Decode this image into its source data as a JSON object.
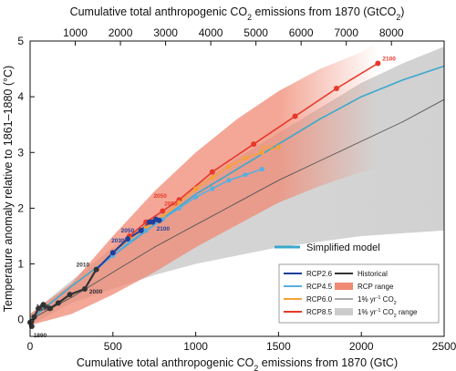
{
  "chart_data": {
    "type": "line",
    "title": "",
    "xlabel": "Cumulative total anthropogenic CO2 emissions from 1870 (GtC)",
    "xlabel_parts": [
      "Cumulative total anthropogenic CO",
      "2",
      " emissions from 1870 (GtC)"
    ],
    "x2label": "Cumulative total anthropogenic CO2 emissions from 1870 (GtCO2)",
    "x2label_parts": [
      "Cumulative total anthropogenic CO",
      "2",
      " emissions from 1870 (GtCO",
      "2",
      ")"
    ],
    "ylabel": "Temperature anomaly relative to 1861–1880 (°C)",
    "xlim": [
      0,
      2500
    ],
    "ylim": [
      -0.3,
      5
    ],
    "x2lim": [
      0,
      9166.7
    ],
    "xticks": [
      0,
      500,
      1000,
      1500,
      2000,
      2500
    ],
    "yticks": [
      0,
      1,
      2,
      3,
      4,
      5
    ],
    "x2ticks": [
      1000,
      2000,
      3000,
      4000,
      5000,
      6000,
      7000,
      8000
    ],
    "grid": false,
    "colors": {
      "rcp26": "#1f3f9c",
      "rcp45": "#5aaee0",
      "rcp60": "#f5a23a",
      "rcp85": "#e8382a",
      "historical": "#333333",
      "rcp_range": "#f08a74",
      "one_pct": "#555555",
      "one_pct_range": "#cccccc",
      "simplified": "#3aa8cc"
    },
    "bands": [
      {
        "name": "1% yr-1 CO2 range",
        "upper": [
          [
            0,
            0.1
          ],
          [
            250,
            0.7
          ],
          [
            500,
            1.3
          ],
          [
            750,
            1.85
          ],
          [
            1000,
            2.4
          ],
          [
            1250,
            2.9
          ],
          [
            1500,
            3.35
          ],
          [
            1750,
            3.8
          ],
          [
            2000,
            4.25
          ],
          [
            2250,
            4.6
          ],
          [
            2500,
            4.9
          ]
        ],
        "lower": [
          [
            0,
            -0.1
          ],
          [
            250,
            0.3
          ],
          [
            500,
            0.55
          ],
          [
            750,
            0.8
          ],
          [
            1000,
            1.0
          ],
          [
            1250,
            1.15
          ],
          [
            1500,
            1.3
          ],
          [
            1750,
            1.4
          ],
          [
            2000,
            1.5
          ],
          [
            2250,
            1.55
          ],
          [
            2500,
            1.6
          ]
        ]
      },
      {
        "name": "RCP range",
        "upper": [
          [
            0,
            0.1
          ],
          [
            250,
            0.65
          ],
          [
            500,
            1.5
          ],
          [
            750,
            2.3
          ],
          [
            1000,
            3.0
          ],
          [
            1250,
            3.6
          ],
          [
            1500,
            4.1
          ],
          [
            1750,
            4.5
          ],
          [
            2000,
            4.8
          ],
          [
            2100,
            5.0
          ]
        ],
        "lower": [
          [
            0,
            -0.1
          ],
          [
            250,
            0.1
          ],
          [
            500,
            0.45
          ],
          [
            750,
            0.85
          ],
          [
            1000,
            1.3
          ],
          [
            1250,
            1.7
          ],
          [
            1500,
            2.1
          ],
          [
            1750,
            2.4
          ],
          [
            2000,
            2.65
          ],
          [
            2100,
            2.7
          ]
        ]
      }
    ],
    "series": [
      {
        "name": "Historical",
        "key": "historical",
        "x": [
          0,
          10,
          25,
          50,
          80,
          120,
          170,
          240,
          330,
          400
        ],
        "y": [
          -0.05,
          -0.12,
          0.05,
          0.2,
          0.27,
          0.2,
          0.3,
          0.45,
          0.55,
          0.9
        ]
      },
      {
        "name": "RCP2.6",
        "key": "rcp26",
        "x": [
          400,
          500,
          590,
          670,
          720,
          740,
          760,
          780
        ],
        "y": [
          0.9,
          1.2,
          1.45,
          1.6,
          1.75,
          1.75,
          1.8,
          1.78
        ]
      },
      {
        "name": "RCP4.5",
        "key": "rcp45",
        "x": [
          400,
          500,
          600,
          700,
          800,
          900,
          1000,
          1100,
          1200,
          1300,
          1400
        ],
        "y": [
          0.9,
          1.15,
          1.4,
          1.6,
          1.8,
          2.0,
          2.2,
          2.35,
          2.5,
          2.6,
          2.7
        ]
      },
      {
        "name": "RCP6.0",
        "key": "rcp60",
        "x": [
          400,
          500,
          600,
          700,
          800,
          900,
          1000,
          1100,
          1200,
          1300,
          1400,
          1500
        ],
        "y": [
          0.9,
          1.2,
          1.45,
          1.65,
          1.85,
          2.1,
          2.35,
          2.55,
          2.75,
          2.9,
          3.0,
          3.1
        ]
      },
      {
        "name": "RCP8.5",
        "key": "rcp85",
        "x": [
          400,
          500,
          600,
          700,
          800,
          900,
          1100,
          1350,
          1600,
          1850,
          2100
        ],
        "y": [
          0.9,
          1.2,
          1.5,
          1.75,
          1.95,
          2.15,
          2.65,
          3.15,
          3.65,
          4.15,
          4.6
        ]
      },
      {
        "name": "1% yr-1 CO2",
        "key": "one_pct",
        "x": [
          0,
          250,
          500,
          750,
          1000,
          1250,
          1500,
          1750,
          2000,
          2250,
          2500
        ],
        "y": [
          0,
          0.4,
          0.85,
          1.3,
          1.7,
          2.1,
          2.5,
          2.85,
          3.2,
          3.55,
          3.95
        ]
      },
      {
        "name": "Simplified model",
        "key": "simplified",
        "x": [
          0,
          250,
          500,
          750,
          1000,
          1250,
          1500,
          1750,
          2000,
          2250,
          2500
        ],
        "y": [
          0,
          0.6,
          1.15,
          1.7,
          2.25,
          2.7,
          3.15,
          3.6,
          4.0,
          4.3,
          4.55
        ]
      }
    ],
    "markers": [
      {
        "key": "historical",
        "pts": [
          [
            0,
            -0.05
          ],
          [
            10,
            -0.12
          ],
          [
            25,
            0.05
          ],
          [
            50,
            0.2
          ],
          [
            80,
            0.27
          ],
          [
            120,
            0.2
          ],
          [
            170,
            0.3
          ],
          [
            240,
            0.45
          ],
          [
            330,
            0.55
          ],
          [
            400,
            0.9
          ]
        ]
      },
      {
        "key": "rcp26",
        "pts": [
          [
            500,
            1.2
          ],
          [
            590,
            1.45
          ],
          [
            670,
            1.6
          ],
          [
            720,
            1.75
          ],
          [
            740,
            1.75
          ],
          [
            760,
            1.8
          ],
          [
            780,
            1.78
          ]
        ]
      },
      {
        "key": "rcp45",
        "pts": [
          [
            500,
            1.15
          ],
          [
            600,
            1.4
          ],
          [
            700,
            1.6
          ],
          [
            800,
            1.8
          ],
          [
            900,
            2.0
          ],
          [
            1000,
            2.2
          ],
          [
            1100,
            2.35
          ],
          [
            1200,
            2.5
          ],
          [
            1300,
            2.6
          ],
          [
            1400,
            2.7
          ]
        ]
      },
      {
        "key": "rcp60",
        "pts": [
          [
            500,
            1.2
          ],
          [
            600,
            1.45
          ],
          [
            700,
            1.65
          ],
          [
            800,
            1.85
          ],
          [
            900,
            2.1
          ],
          [
            1000,
            2.35
          ],
          [
            1100,
            2.55
          ],
          [
            1200,
            2.75
          ],
          [
            1300,
            2.9
          ],
          [
            1400,
            3.0
          ],
          [
            1500,
            3.1
          ]
        ]
      },
      {
        "key": "rcp85",
        "pts": [
          [
            500,
            1.2
          ],
          [
            600,
            1.5
          ],
          [
            700,
            1.75
          ],
          [
            800,
            1.95
          ],
          [
            900,
            2.15
          ],
          [
            1100,
            2.65
          ],
          [
            1350,
            3.15
          ],
          [
            1600,
            3.65
          ],
          [
            1850,
            4.15
          ],
          [
            2100,
            4.6
          ]
        ]
      }
    ],
    "point_labels": [
      {
        "text": "1890",
        "key": "historical",
        "x": 10,
        "y": -0.12,
        "dx": 2,
        "dy": 12
      },
      {
        "text": "1950",
        "key": "historical",
        "x": 25,
        "y": 0.05,
        "dx": 2,
        "dy": -9
      },
      {
        "text": "1980",
        "key": "historical",
        "x": 170,
        "y": 0.3,
        "dx": -20,
        "dy": 8
      },
      {
        "text": "2000",
        "key": "historical",
        "x": 330,
        "y": 0.55,
        "dx": 5,
        "dy": 5
      },
      {
        "text": "2010",
        "key": "historical",
        "x": 400,
        "y": 0.9,
        "dx": -22,
        "dy": -3
      },
      {
        "text": "2100",
        "key": "rcp26",
        "x": 780,
        "y": 1.78,
        "dx": -3,
        "dy": 11
      },
      {
        "text": "2030",
        "key": "rcp26",
        "x": 590,
        "y": 1.45,
        "dx": -18,
        "dy": 4
      },
      {
        "text": "2050",
        "key": "rcp26",
        "x": 670,
        "y": 1.6,
        "dx": -22,
        "dy": 2
      },
      {
        "text": "2050",
        "key": "rcp85",
        "x": 800,
        "y": 1.95,
        "dx": 2,
        "dy": -6
      },
      {
        "text": "2050",
        "key": "rcp85",
        "x": 900,
        "y": 2.15,
        "dx": -28,
        "dy": -2
      },
      {
        "text": "2100",
        "key": "rcp60",
        "x": 1500,
        "y": 3.1,
        "dx": -20,
        "dy": 3
      },
      {
        "text": "2100",
        "key": "rcp85",
        "x": 2100,
        "y": 4.6,
        "dx": 5,
        "dy": -3
      }
    ],
    "legend": {
      "placement": "bottom-right",
      "items": [
        {
          "key": "rcp26",
          "label": "RCP2.6",
          "kind": "line"
        },
        {
          "key": "historical",
          "label": "Historical",
          "kind": "line"
        },
        {
          "key": "rcp45",
          "label": "RCP4.5",
          "kind": "line"
        },
        {
          "key": "rcp_range",
          "label": "RCP range",
          "kind": "patch"
        },
        {
          "key": "rcp60",
          "label": "RCP6.0",
          "kind": "line"
        },
        {
          "key": "one_pct",
          "label": "1% yr-1 CO2",
          "label_parts": [
            "1% yr",
            "-1",
            " CO",
            "2"
          ],
          "kind": "line"
        },
        {
          "key": "rcp85",
          "label": "RCP8.5",
          "kind": "line"
        },
        {
          "key": "one_pct_range",
          "label": "1% yr-1 CO2 range",
          "label_parts": [
            "1% yr",
            "-1",
            " CO",
            "2",
            " range"
          ],
          "kind": "patch"
        }
      ]
    },
    "simplified_label": "Simplified model"
  }
}
